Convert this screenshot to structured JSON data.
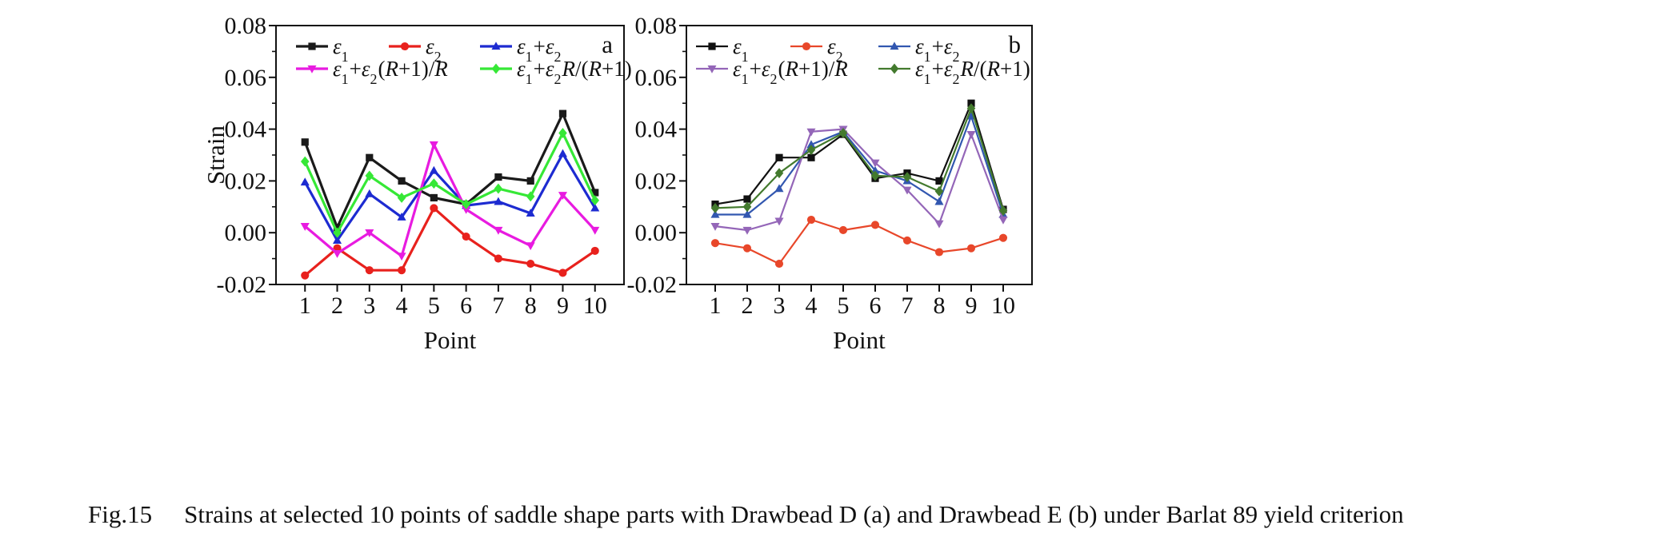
{
  "caption": {
    "label": "Fig.15",
    "text": "Strains at selected 10 points of saddle shape parts with Drawbead D (a) and Drawbead E (b) under Barlat 89 yield criterion"
  },
  "chart_data": [
    {
      "type": "line",
      "panel_label": "a",
      "xlabel": "Point",
      "ylabel": "Strain",
      "x": [
        1,
        2,
        3,
        4,
        5,
        6,
        7,
        8,
        9,
        10
      ],
      "xlim": [
        0.1,
        10.9
      ],
      "ylim": [
        -0.02,
        0.08
      ],
      "yticks": [
        "-0.02",
        "0.00",
        "0.02",
        "0.04",
        "0.06",
        "0.08"
      ],
      "legend_placement": "top-left",
      "series": [
        {
          "name": "ε1",
          "color": "#1a1a1a",
          "marker": "square",
          "values": [
            0.035,
            0.002,
            0.029,
            0.02,
            0.0135,
            0.011,
            0.0215,
            0.02,
            0.046,
            0.0155
          ]
        },
        {
          "name": "ε2",
          "color": "#e8211d",
          "marker": "circle",
          "values": [
            -0.0165,
            -0.006,
            -0.0145,
            -0.0145,
            0.0095,
            -0.0015,
            -0.01,
            -0.012,
            -0.0155,
            -0.007
          ]
        },
        {
          "name": "ε1+ε2",
          "color": "#1d2bd1",
          "marker": "triangle-up",
          "values": [
            0.0195,
            -0.003,
            0.015,
            0.006,
            0.024,
            0.0105,
            0.012,
            0.0075,
            0.0305,
            0.0095
          ]
        },
        {
          "name": "ε1+ε2(R+1)/R",
          "color": "#e81be0",
          "marker": "triangle-down",
          "values": [
            0.0025,
            -0.008,
            0.0,
            -0.009,
            0.034,
            0.009,
            0.001,
            -0.005,
            0.0145,
            0.001
          ]
        },
        {
          "name": "ε1+ε2R/(R+1)",
          "color": "#36e836",
          "marker": "diamond",
          "values": [
            0.0275,
            0.0,
            0.022,
            0.0135,
            0.019,
            0.011,
            0.017,
            0.014,
            0.0385,
            0.0125
          ]
        }
      ]
    },
    {
      "type": "line",
      "panel_label": "b",
      "xlabel": "Point",
      "ylabel": "",
      "x": [
        1,
        2,
        3,
        4,
        5,
        6,
        7,
        8,
        9,
        10
      ],
      "xlim": [
        0.1,
        10.9
      ],
      "ylim": [
        -0.02,
        0.08
      ],
      "yticks": [
        "-0.02",
        "0.00",
        "0.02",
        "0.04",
        "0.06",
        "0.08"
      ],
      "legend_placement": "top-left",
      "series": [
        {
          "name": "ε1",
          "color": "#111111",
          "marker": "square",
          "values": [
            0.011,
            0.013,
            0.029,
            0.029,
            0.038,
            0.021,
            0.023,
            0.02,
            0.05,
            0.009
          ]
        },
        {
          "name": "ε2",
          "color": "#e8472a",
          "marker": "circle",
          "values": [
            -0.004,
            -0.006,
            -0.012,
            0.005,
            0.001,
            0.003,
            -0.003,
            -0.0075,
            -0.006,
            -0.002
          ]
        },
        {
          "name": "ε1+ε2",
          "color": "#3257b0",
          "marker": "triangle-up",
          "values": [
            0.007,
            0.007,
            0.017,
            0.034,
            0.039,
            0.024,
            0.02,
            0.012,
            0.045,
            0.007
          ]
        },
        {
          "name": "ε1+ε2(R+1)/R",
          "color": "#9466b8",
          "marker": "triangle-down",
          "values": [
            0.0025,
            0.001,
            0.0045,
            0.039,
            0.04,
            0.027,
            0.0165,
            0.0035,
            0.038,
            0.005
          ]
        },
        {
          "name": "ε1+ε2R/(R+1)",
          "color": "#437a2e",
          "marker": "diamond",
          "values": [
            0.0095,
            0.01,
            0.023,
            0.032,
            0.0385,
            0.022,
            0.0215,
            0.016,
            0.048,
            0.0085
          ]
        }
      ]
    }
  ]
}
